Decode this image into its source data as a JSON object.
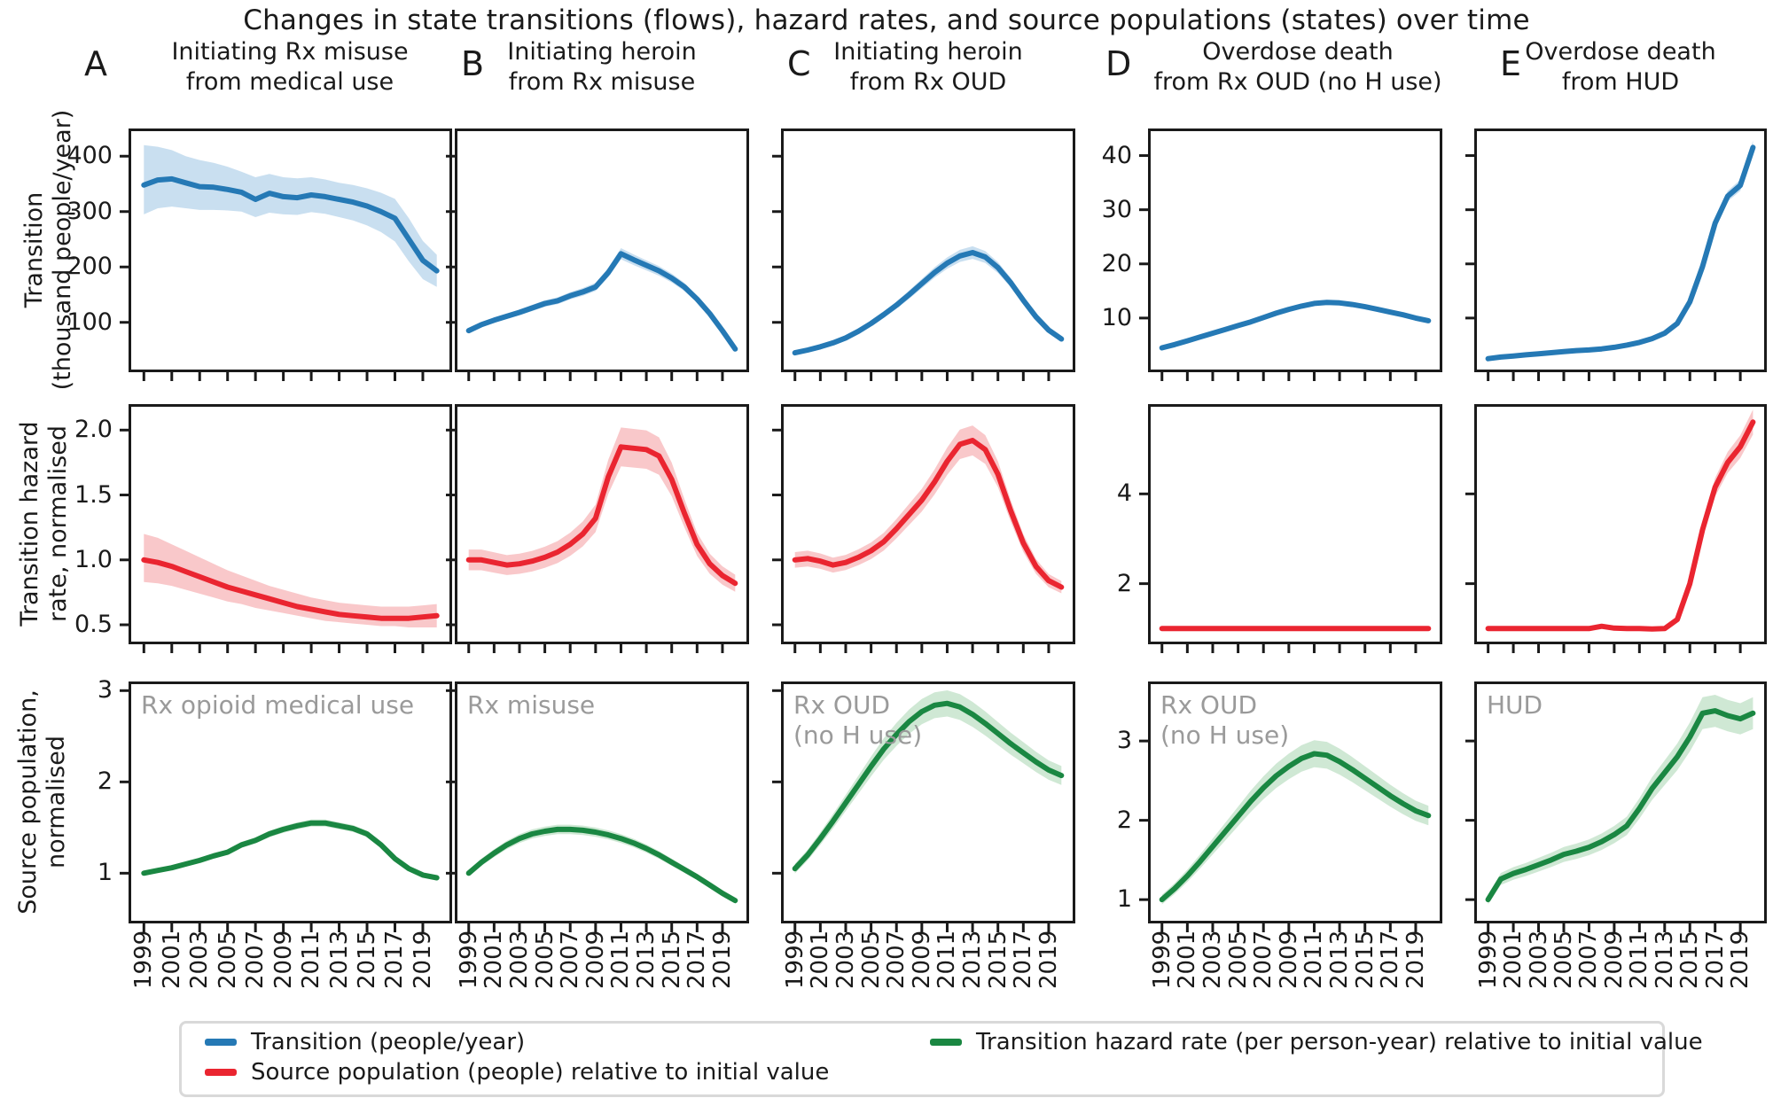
{
  "title": "Changes in state transitions (flows), hazard rates, and source populations (states) over time",
  "header": {
    "panels": [
      {
        "letter": "A",
        "title_lines": [
          "Initiating Rx misuse",
          "from medical use"
        ]
      },
      {
        "letter": "B",
        "title_lines": [
          "Initiating heroin",
          "from Rx misuse"
        ]
      },
      {
        "letter": "C",
        "title_lines": [
          "Initiating heroin",
          "from Rx OUD"
        ]
      },
      {
        "letter": "D",
        "title_lines": [
          "Overdose death",
          "from Rx OUD (no H use)"
        ]
      },
      {
        "letter": "E",
        "title_lines": [
          "Overdose death",
          "from HUD"
        ]
      }
    ]
  },
  "row_labels": [
    [
      "Transition",
      "(thousand people/year)"
    ],
    [
      "Transition hazard",
      "rate, normalised"
    ],
    [
      "Source population,",
      "normalised"
    ]
  ],
  "colors": {
    "blue": {
      "line": "#2579b5",
      "band": "#c9dff0"
    },
    "red": {
      "line": "#ea2530",
      "band": "#f9c8ca"
    },
    "green": {
      "line": "#1a8742",
      "band": "#cfe8d4"
    },
    "spine": "#1a1a1a",
    "annotation": "#9a9a9a"
  },
  "legend": {
    "items": [
      {
        "color": "#2579b5",
        "label": "Transition (people/year)"
      },
      {
        "color": "#ea2530",
        "label": "Source population (people) relative to initial value"
      },
      {
        "color": "#1a8742",
        "label": "Transition hazard rate (per person-year) relative to initial value"
      }
    ]
  },
  "chart_data": {
    "type": "line",
    "x_years": [
      1999,
      2000,
      2001,
      2002,
      2003,
      2004,
      2005,
      2006,
      2007,
      2008,
      2009,
      2010,
      2011,
      2012,
      2013,
      2014,
      2015,
      2016,
      2017,
      2018,
      2019,
      2020
    ],
    "x_tick_years": [
      1999,
      2001,
      2003,
      2005,
      2007,
      2009,
      2011,
      2013,
      2015,
      2017,
      2019
    ],
    "x_tick_labels": [
      "1999",
      "2001",
      "2003",
      "2005",
      "2007",
      "2009",
      "2011",
      "2013",
      "2015",
      "2017",
      "2019"
    ],
    "panels": [
      {
        "id": "A1",
        "col": "A",
        "row": 1,
        "color": "blue",
        "ylim": [
          10,
          450
        ],
        "yticks": [
          100,
          200,
          300,
          400
        ],
        "ytick_labels": [
          "100",
          "200",
          "300",
          "400"
        ],
        "values": [
          348,
          357,
          359,
          352,
          345,
          344,
          340,
          335,
          322,
          333,
          327,
          325,
          330,
          327,
          322,
          317,
          310,
          300,
          288,
          250,
          212,
          193
        ],
        "band_lo": [
          295,
          306,
          309,
          306,
          303,
          303,
          302,
          300,
          290,
          298,
          295,
          294,
          299,
          296,
          290,
          284,
          275,
          263,
          246,
          210,
          178,
          164
        ],
        "band_hi": [
          420,
          417,
          411,
          400,
          393,
          388,
          381,
          372,
          362,
          368,
          362,
          360,
          362,
          358,
          352,
          348,
          342,
          334,
          323,
          288,
          247,
          222
        ]
      },
      {
        "id": "B1",
        "col": "B",
        "row": 1,
        "color": "blue",
        "ylim": [
          10,
          450
        ],
        "yticks": [
          100,
          200,
          300,
          400
        ],
        "values": [
          85,
          96,
          104,
          111,
          118,
          126,
          134,
          139,
          148,
          155,
          164,
          190,
          224,
          213,
          203,
          193,
          180,
          164,
          142,
          116,
          85,
          52
        ],
        "band_frac": 0.045
      },
      {
        "id": "C1",
        "col": "C",
        "row": 1,
        "color": "blue",
        "ylim": [
          10,
          450
        ],
        "yticks": [
          100,
          200,
          300,
          400
        ],
        "values": [
          45,
          50,
          56,
          63,
          72,
          84,
          98,
          114,
          131,
          150,
          170,
          190,
          207,
          220,
          226,
          218,
          199,
          172,
          140,
          110,
          86,
          70
        ],
        "band_frac": 0.05
      },
      {
        "id": "D1",
        "col": "D",
        "row": 1,
        "color": "blue",
        "ylim": [
          0,
          45
        ],
        "yticks": [
          10,
          20,
          30,
          40
        ],
        "ytick_labels": [
          "10",
          "20",
          "30",
          "40"
        ],
        "values": [
          4.5,
          5.1,
          5.8,
          6.5,
          7.2,
          7.9,
          8.6,
          9.3,
          10.1,
          10.9,
          11.6,
          12.2,
          12.7,
          12.9,
          12.8,
          12.5,
          12.1,
          11.6,
          11.1,
          10.6,
          10.0,
          9.5
        ],
        "band_frac": 0.03
      },
      {
        "id": "E1",
        "col": "E",
        "row": 1,
        "color": "blue",
        "ylim": [
          0,
          45
        ],
        "yticks": [
          10,
          20,
          30,
          40
        ],
        "values": [
          2.5,
          2.8,
          3.0,
          3.2,
          3.4,
          3.6,
          3.8,
          4.0,
          4.1,
          4.3,
          4.6,
          5.0,
          5.5,
          6.2,
          7.2,
          9.0,
          13.0,
          19.5,
          27.5,
          32.5,
          34.5,
          41.5
        ],
        "band_frac": 0.03
      },
      {
        "id": "A2",
        "col": "A",
        "row": 2,
        "color": "red",
        "ylim": [
          0.35,
          2.2
        ],
        "yticks": [
          0.5,
          1.0,
          1.5,
          2.0
        ],
        "ytick_labels": [
          "0.5",
          "1.0",
          "1.5",
          "2.0"
        ],
        "values": [
          1.0,
          0.98,
          0.95,
          0.91,
          0.87,
          0.83,
          0.79,
          0.76,
          0.73,
          0.7,
          0.67,
          0.64,
          0.62,
          0.6,
          0.58,
          0.57,
          0.56,
          0.55,
          0.55,
          0.55,
          0.56,
          0.57
        ],
        "band_lo": [
          0.83,
          0.82,
          0.8,
          0.77,
          0.74,
          0.71,
          0.68,
          0.66,
          0.63,
          0.61,
          0.59,
          0.57,
          0.55,
          0.53,
          0.52,
          0.51,
          0.5,
          0.49,
          0.49,
          0.48,
          0.48,
          0.48
        ],
        "band_hi": [
          1.2,
          1.17,
          1.12,
          1.07,
          1.02,
          0.97,
          0.92,
          0.88,
          0.84,
          0.8,
          0.77,
          0.74,
          0.71,
          0.69,
          0.67,
          0.66,
          0.65,
          0.64,
          0.64,
          0.64,
          0.65,
          0.66
        ]
      },
      {
        "id": "B2",
        "col": "B",
        "row": 2,
        "color": "red",
        "ylim": [
          0.35,
          2.2
        ],
        "yticks": [
          0.5,
          1.0,
          1.5,
          2.0
        ],
        "values": [
          1.0,
          1.0,
          0.98,
          0.96,
          0.97,
          0.99,
          1.02,
          1.06,
          1.12,
          1.2,
          1.32,
          1.64,
          1.87,
          1.86,
          1.85,
          1.8,
          1.62,
          1.36,
          1.12,
          0.97,
          0.88,
          0.82
        ],
        "band_frac": 0.08
      },
      {
        "id": "C2",
        "col": "C",
        "row": 2,
        "color": "red",
        "ylim": [
          0.35,
          2.2
        ],
        "yticks": [
          0.5,
          1.0,
          1.5,
          2.0
        ],
        "values": [
          1.0,
          1.01,
          0.99,
          0.96,
          0.98,
          1.02,
          1.07,
          1.14,
          1.24,
          1.35,
          1.46,
          1.6,
          1.76,
          1.89,
          1.92,
          1.85,
          1.66,
          1.38,
          1.13,
          0.95,
          0.84,
          0.79
        ],
        "band_frac": 0.06
      },
      {
        "id": "D2",
        "col": "D",
        "row": 2,
        "color": "red",
        "ylim": [
          0.65,
          6.0
        ],
        "yticks": [
          2,
          4
        ],
        "ytick_labels": [
          "2",
          "4"
        ],
        "values": [
          1.0,
          1.0,
          1.0,
          1.0,
          1.0,
          1.0,
          1.0,
          1.0,
          1.0,
          1.0,
          1.0,
          1.0,
          1.0,
          1.0,
          1.0,
          1.0,
          1.0,
          1.0,
          1.0,
          1.0,
          1.0,
          1.0
        ],
        "band_frac": 0.02
      },
      {
        "id": "E2",
        "col": "E",
        "row": 2,
        "color": "red",
        "ylim": [
          0.65,
          6.0
        ],
        "yticks": [
          2,
          4
        ],
        "values": [
          1.0,
          1.0,
          1.0,
          1.0,
          1.0,
          1.0,
          1.0,
          1.0,
          1.0,
          1.05,
          1.01,
          1.0,
          1.0,
          0.99,
          1.0,
          1.2,
          2.0,
          3.2,
          4.15,
          4.7,
          5.05,
          5.6
        ],
        "band_frac": 0.05
      },
      {
        "id": "A3",
        "col": "A",
        "row": 3,
        "color": "green",
        "ylim": [
          0.45,
          3.1
        ],
        "yticks": [
          1,
          2,
          3
        ],
        "ytick_labels": [
          "1",
          "2",
          "3"
        ],
        "annotation": [
          "Rx opioid medical use"
        ],
        "values": [
          1.0,
          1.03,
          1.06,
          1.1,
          1.14,
          1.19,
          1.23,
          1.31,
          1.36,
          1.43,
          1.48,
          1.52,
          1.55,
          1.55,
          1.52,
          1.49,
          1.43,
          1.31,
          1.16,
          1.05,
          0.98,
          0.95
        ],
        "band_frac": 0.025
      },
      {
        "id": "B3",
        "col": "B",
        "row": 3,
        "color": "green",
        "ylim": [
          0.45,
          3.1
        ],
        "yticks": [
          1,
          2,
          3
        ],
        "annotation": [
          "Rx misuse"
        ],
        "values": [
          1.0,
          1.12,
          1.22,
          1.31,
          1.38,
          1.43,
          1.46,
          1.48,
          1.48,
          1.47,
          1.45,
          1.42,
          1.38,
          1.33,
          1.27,
          1.2,
          1.12,
          1.04,
          0.96,
          0.87,
          0.78,
          0.7
        ],
        "band_frac": 0.035
      },
      {
        "id": "C3",
        "col": "C",
        "row": 3,
        "color": "green",
        "ylim": [
          0.45,
          3.1
        ],
        "yticks": [
          1,
          2,
          3
        ],
        "annotation": [
          "Rx OUD",
          "(no H use)"
        ],
        "values": [
          1.05,
          1.2,
          1.38,
          1.57,
          1.77,
          1.97,
          2.17,
          2.36,
          2.52,
          2.66,
          2.77,
          2.84,
          2.86,
          2.82,
          2.74,
          2.64,
          2.53,
          2.42,
          2.32,
          2.22,
          2.13,
          2.07
        ],
        "band_frac": 0.05
      },
      {
        "id": "D3",
        "col": "D",
        "row": 3,
        "color": "green",
        "ylim": [
          0.7,
          3.75
        ],
        "yticks": [
          1,
          2,
          3
        ],
        "ytick_labels": [
          "1",
          "2",
          "3"
        ],
        "annotation": [
          "Rx OUD",
          "(no H use)"
        ],
        "values": [
          1.0,
          1.14,
          1.3,
          1.48,
          1.67,
          1.86,
          2.05,
          2.24,
          2.41,
          2.56,
          2.68,
          2.78,
          2.84,
          2.82,
          2.74,
          2.64,
          2.53,
          2.42,
          2.31,
          2.21,
          2.12,
          2.06
        ],
        "band_frac": 0.06
      },
      {
        "id": "E3",
        "col": "E",
        "row": 3,
        "color": "green",
        "ylim": [
          0.7,
          3.75
        ],
        "yticks": [
          1,
          2,
          3
        ],
        "annotation": [
          "HUD"
        ],
        "values": [
          1.0,
          1.26,
          1.33,
          1.38,
          1.44,
          1.5,
          1.57,
          1.61,
          1.66,
          1.73,
          1.82,
          1.93,
          2.15,
          2.4,
          2.6,
          2.8,
          3.05,
          3.35,
          3.38,
          3.32,
          3.28,
          3.35
        ],
        "band_frac": 0.06
      }
    ]
  }
}
